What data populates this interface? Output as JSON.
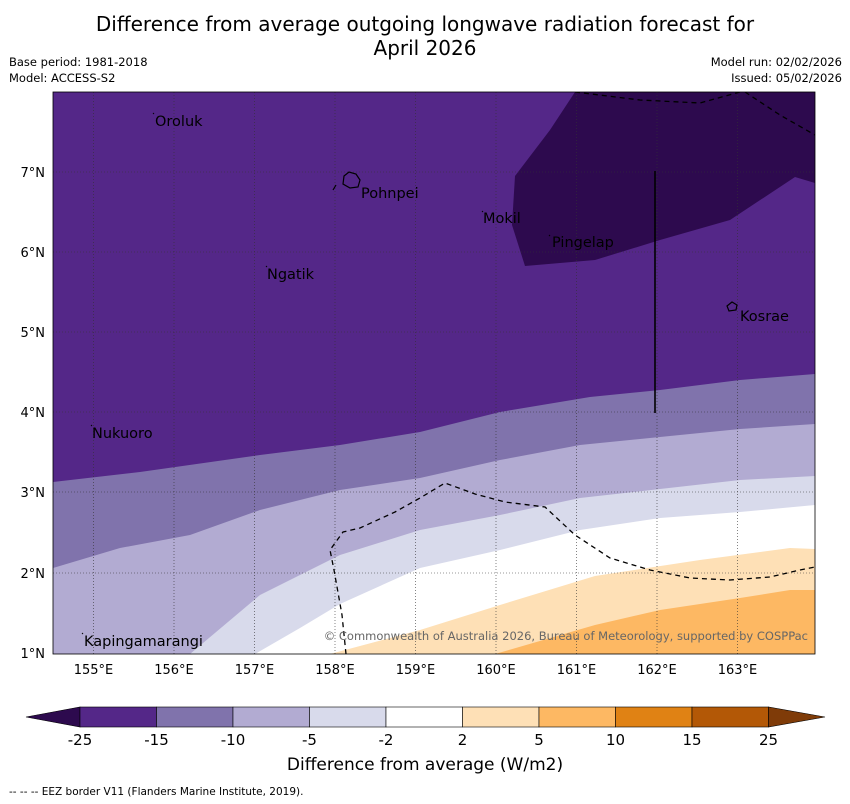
{
  "title": {
    "line1": "Difference from average outgoing longwave radiation forecast for",
    "line2": "April 2026"
  },
  "meta": {
    "base_period": "Base period: 1981-2018",
    "model": "Model: ACCESS-S2",
    "model_run": "Model run: 02/02/2026",
    "issued": "Issued: 05/02/2026"
  },
  "map": {
    "lon_ticks": [
      "155°E",
      "156°E",
      "157°E",
      "158°E",
      "159°E",
      "160°E",
      "161°E",
      "162°E",
      "163°E"
    ],
    "lat_ticks": [
      "7°N",
      "6°N",
      "5°N",
      "4°N",
      "3°N",
      "2°N",
      "1°N"
    ],
    "places": [
      "Oroluk",
      "Pohnpei",
      "Mokil",
      "Pingelap",
      "Ngatik",
      "Kosrae",
      "Nukuoro",
      "Kapingamarangi"
    ],
    "copyright": "© Commonwealth of Australia 2026, Bureau of Meteorology, supported by COSPPac"
  },
  "legend": {
    "ticks": [
      "-25",
      "-15",
      "-10",
      "-5",
      "-2",
      "2",
      "5",
      "10",
      "15",
      "25"
    ],
    "label": "Difference from average (W/m2)",
    "colors": [
      "#2d0a4e",
      "#542788",
      "#8073ac",
      "#b2abd2",
      "#d8daeb",
      "#ffffff",
      "#fee0b6",
      "#fdb863",
      "#e08214",
      "#b35806",
      "#7f3b08"
    ]
  },
  "eez_note": "--  --  -- EEZ border V11 (Flanders Marine Institute, 2019)."
}
